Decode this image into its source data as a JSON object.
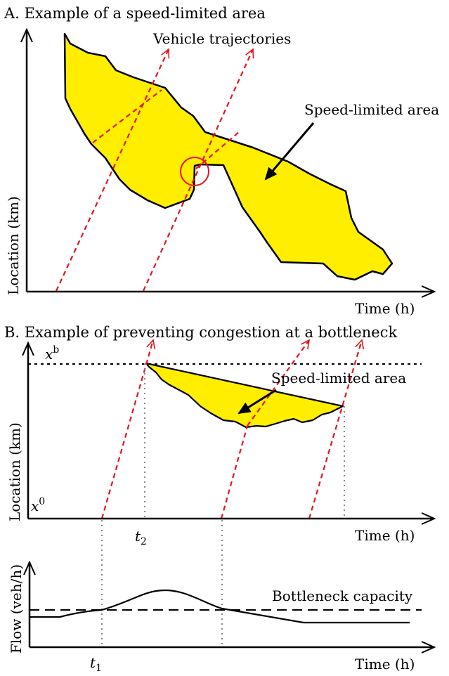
{
  "panel_a": {
    "title": "A. Example of a speed-limited area",
    "trajectories_label": "Vehicle trajectories",
    "area_label": "Speed-limited area",
    "y_axis_label": "Location (km)",
    "x_axis_label": "Time (h)"
  },
  "panel_b": {
    "title": "B. Example of preventing congestion at a bottleneck",
    "area_label": "Speed-limited area",
    "y_axis_label": "Location (km)",
    "x_axis_label": "Time (h)",
    "x_top_label": "x",
    "x_top_sup": "b",
    "x_bottom_label": "x",
    "x_bottom_sup": "0",
    "t2_label": "t",
    "t2_sub": "2"
  },
  "panel_c": {
    "y_axis_label": "Flow (veh/h)",
    "x_axis_label": "Time (h)",
    "capacity_label": "Bottleneck capacity",
    "t1_label": "t",
    "t1_sub": "1"
  },
  "colors": {
    "area_fill": "#ffee00",
    "trajectory": "#e8141c",
    "axis": "#000000",
    "guide": "#888888"
  }
}
